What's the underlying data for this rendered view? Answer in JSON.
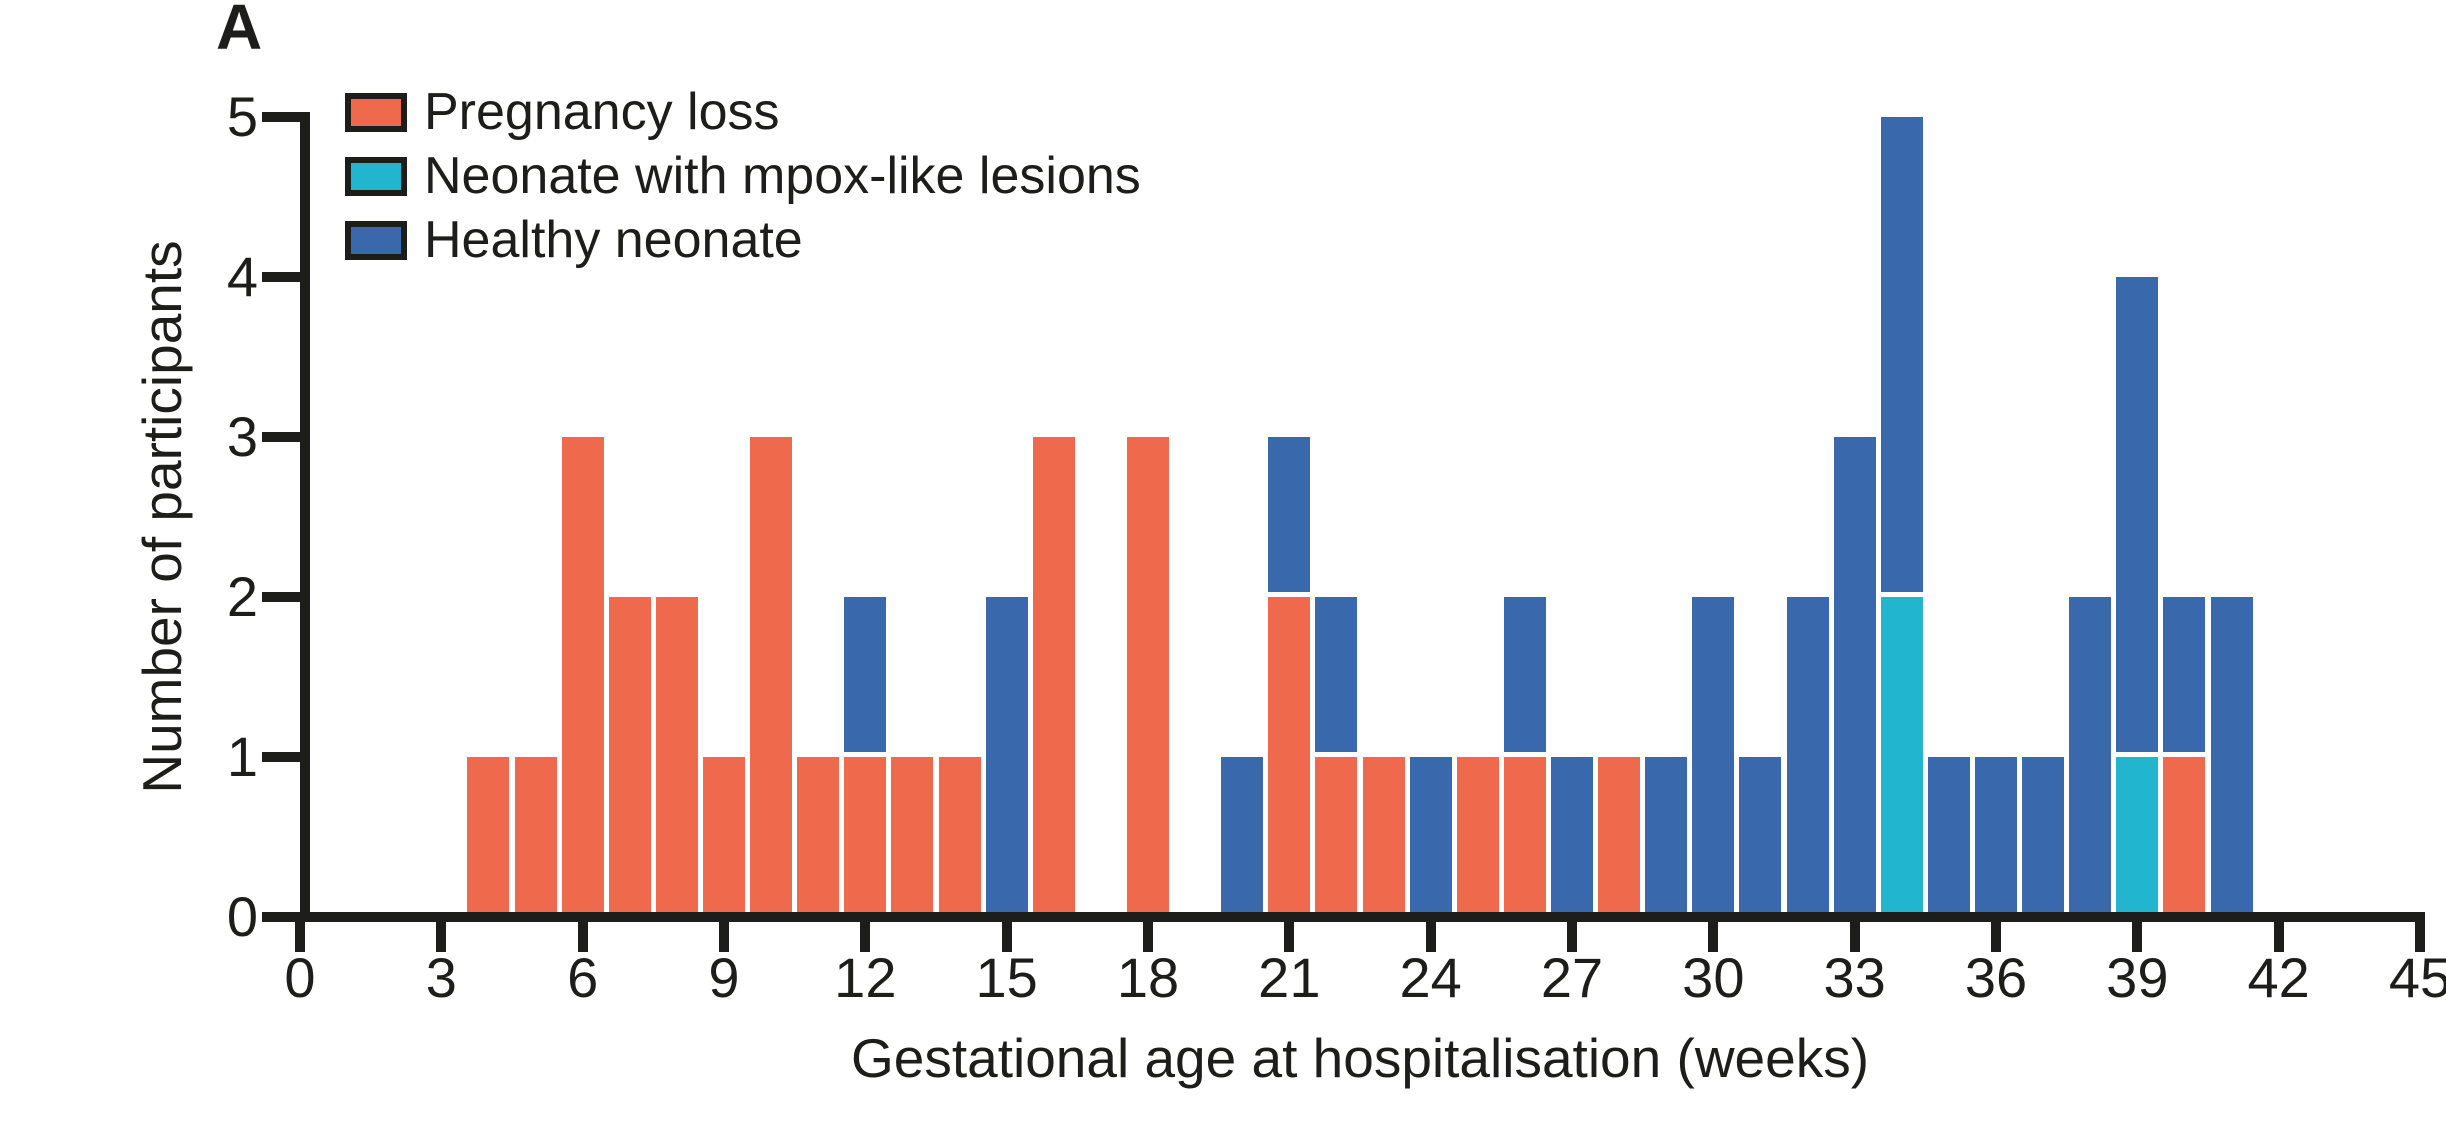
{
  "panel_label": "A",
  "colors": {
    "pregnancy_loss": "#ef6a4d",
    "neonate_mpox_lesions": "#22b5cf",
    "healthy_neonate": "#3a68ad",
    "axis_black": "#1d1d1b",
    "background": "#ffffff"
  },
  "legend": [
    {
      "label": "Pregnancy loss",
      "color": "#ef6a4d"
    },
    {
      "label": "Neonate with mpox-like lesions",
      "color": "#22b5cf"
    },
    {
      "label": "Healthy neonate",
      "color": "#3a68ad"
    }
  ],
  "y_axis": {
    "label": "Number of participants",
    "ticks": [
      0,
      1,
      2,
      3,
      4,
      5
    ],
    "min": 0,
    "max": 5
  },
  "x_axis": {
    "label": "Gestational age at hospitalisation (weeks)",
    "ticks": [
      0,
      3,
      6,
      9,
      12,
      15,
      18,
      21,
      24,
      27,
      30,
      33,
      36,
      39,
      42,
      45
    ],
    "min": 0,
    "max": 45
  },
  "chart_data": {
    "type": "bar",
    "stacked": true,
    "title": "",
    "xlabel": "Gestational age at hospitalisation (weeks)",
    "ylabel": "Number of participants",
    "xlim": [
      0,
      45
    ],
    "ylim": [
      0,
      5
    ],
    "x_tick_step": 3,
    "grid": false,
    "legend_position": "top-left",
    "bar_unit": "participants per gestational week",
    "series": [
      {
        "name": "Pregnancy loss",
        "color": "#ef6a4d"
      },
      {
        "name": "Neonate with mpox-like lesions",
        "color": "#22b5cf"
      },
      {
        "name": "Healthy neonate",
        "color": "#3a68ad"
      }
    ],
    "bars": [
      {
        "week": 4,
        "segments": [
          {
            "series": 0,
            "value": 1
          }
        ]
      },
      {
        "week": 5,
        "segments": [
          {
            "series": 0,
            "value": 1
          }
        ]
      },
      {
        "week": 6,
        "segments": [
          {
            "series": 0,
            "value": 3
          }
        ]
      },
      {
        "week": 7,
        "segments": [
          {
            "series": 0,
            "value": 2
          }
        ]
      },
      {
        "week": 8,
        "segments": [
          {
            "series": 0,
            "value": 2
          }
        ]
      },
      {
        "week": 9,
        "segments": [
          {
            "series": 0,
            "value": 1
          }
        ]
      },
      {
        "week": 10,
        "segments": [
          {
            "series": 0,
            "value": 3
          }
        ]
      },
      {
        "week": 11,
        "segments": [
          {
            "series": 0,
            "value": 1
          }
        ]
      },
      {
        "week": 12,
        "segments": [
          {
            "series": 0,
            "value": 1
          },
          {
            "series": 2,
            "value": 1
          }
        ]
      },
      {
        "week": 13,
        "segments": [
          {
            "series": 0,
            "value": 1
          }
        ]
      },
      {
        "week": 14,
        "segments": [
          {
            "series": 0,
            "value": 1
          }
        ]
      },
      {
        "week": 15,
        "segments": [
          {
            "series": 2,
            "value": 2
          }
        ]
      },
      {
        "week": 16,
        "segments": [
          {
            "series": 0,
            "value": 3
          }
        ]
      },
      {
        "week": 18,
        "segments": [
          {
            "series": 0,
            "value": 3
          }
        ]
      },
      {
        "week": 20,
        "segments": [
          {
            "series": 2,
            "value": 1
          }
        ]
      },
      {
        "week": 21,
        "segments": [
          {
            "series": 0,
            "value": 2
          },
          {
            "series": 2,
            "value": 1
          }
        ]
      },
      {
        "week": 22,
        "segments": [
          {
            "series": 0,
            "value": 1
          },
          {
            "series": 2,
            "value": 1
          }
        ]
      },
      {
        "week": 23,
        "segments": [
          {
            "series": 0,
            "value": 1
          }
        ]
      },
      {
        "week": 24,
        "segments": [
          {
            "series": 2,
            "value": 1
          }
        ]
      },
      {
        "week": 25,
        "segments": [
          {
            "series": 0,
            "value": 1
          }
        ]
      },
      {
        "week": 26,
        "segments": [
          {
            "series": 0,
            "value": 1
          },
          {
            "series": 2,
            "value": 1
          }
        ]
      },
      {
        "week": 27,
        "segments": [
          {
            "series": 2,
            "value": 1
          }
        ]
      },
      {
        "week": 28,
        "segments": [
          {
            "series": 0,
            "value": 1
          }
        ]
      },
      {
        "week": 29,
        "segments": [
          {
            "series": 2,
            "value": 1
          }
        ]
      },
      {
        "week": 30,
        "segments": [
          {
            "series": 2,
            "value": 2
          }
        ]
      },
      {
        "week": 31,
        "segments": [
          {
            "series": 2,
            "value": 1
          }
        ]
      },
      {
        "week": 32,
        "segments": [
          {
            "series": 2,
            "value": 2
          }
        ]
      },
      {
        "week": 33,
        "segments": [
          {
            "series": 2,
            "value": 3
          }
        ]
      },
      {
        "week": 34,
        "segments": [
          {
            "series": 1,
            "value": 2
          },
          {
            "series": 2,
            "value": 3
          }
        ]
      },
      {
        "week": 35,
        "segments": [
          {
            "series": 2,
            "value": 1
          }
        ]
      },
      {
        "week": 36,
        "segments": [
          {
            "series": 2,
            "value": 1
          }
        ]
      },
      {
        "week": 37,
        "segments": [
          {
            "series": 2,
            "value": 1
          }
        ]
      },
      {
        "week": 38,
        "segments": [
          {
            "series": 2,
            "value": 2
          }
        ]
      },
      {
        "week": 39,
        "segments": [
          {
            "series": 1,
            "value": 1
          },
          {
            "series": 2,
            "value": 3
          }
        ]
      },
      {
        "week": 40,
        "segments": [
          {
            "series": 0,
            "value": 1
          },
          {
            "series": 2,
            "value": 1
          }
        ]
      },
      {
        "week": 41,
        "segments": [
          {
            "series": 2,
            "value": 2
          }
        ]
      }
    ]
  }
}
